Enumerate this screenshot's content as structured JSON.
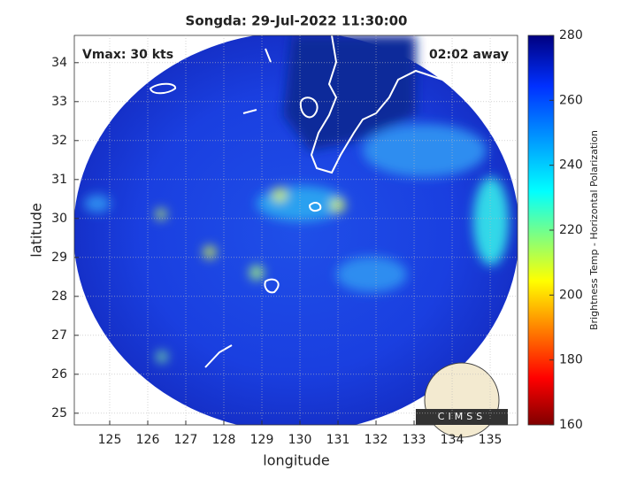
{
  "chart_data": {
    "type": "map",
    "title": "Songda: 29-Jul-2022 11:30:00",
    "annotations": [
      "Vmax: 30 kts",
      "02:02 away"
    ],
    "xlabel": "longitude",
    "ylabel": "latitude",
    "xlim": [
      124.07,
      135.72
    ],
    "ylim": [
      24.7,
      34.7
    ],
    "xticks": [
      125,
      126,
      127,
      128,
      129,
      130,
      131,
      132,
      133,
      134,
      135
    ],
    "yticks": [
      25,
      26,
      27,
      28,
      29,
      30,
      31,
      32,
      33,
      34
    ],
    "grid": true,
    "colorbar": {
      "label": "Brightness Temp - Horizontal Polarization",
      "lim": [
        160,
        280
      ],
      "ticks": [
        160,
        180,
        200,
        220,
        240,
        260,
        280
      ]
    },
    "logo": "CIMSS"
  }
}
